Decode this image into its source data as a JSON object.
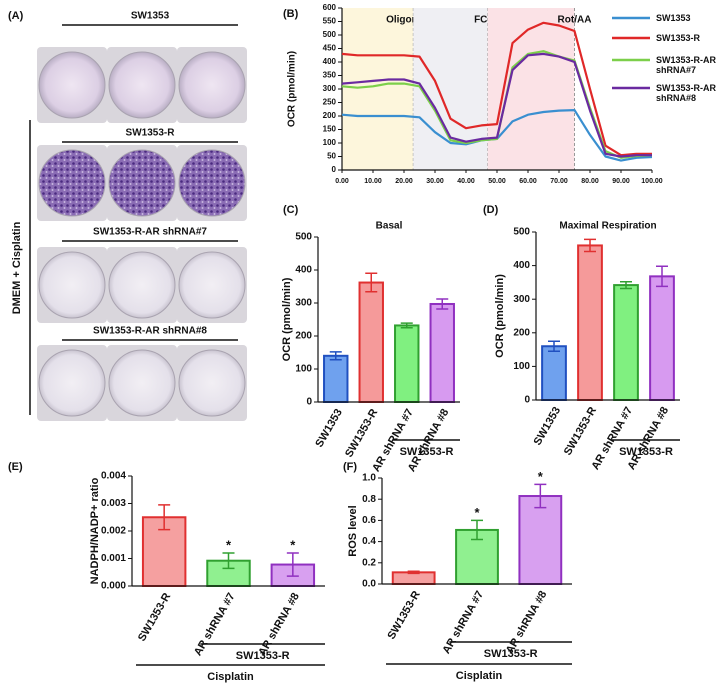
{
  "panel_a": {
    "label": "(A)",
    "side_label": "DMEM + Cisplatin",
    "rows": [
      {
        "title": "SW1353"
      },
      {
        "title": "SW1353-R"
      },
      {
        "title": "SW1353-R-AR shRNA#7"
      },
      {
        "title": "SW1353-R-AR shRNA#8"
      }
    ]
  },
  "chart_data": [
    {
      "type": "line",
      "panel_label": "(B)",
      "y_label": "OCR (pmol/min)",
      "x": [
        0,
        5,
        10,
        15,
        20,
        25,
        30,
        35,
        40,
        45,
        50,
        55,
        60,
        65,
        70,
        75,
        80,
        85,
        90,
        95,
        100
      ],
      "xlim": [
        0,
        100
      ],
      "xticks": [
        {
          "value": 0,
          "label": "0.00"
        },
        {
          "value": 10,
          "label": "10.00"
        },
        {
          "value": 20,
          "label": "20.00"
        },
        {
          "value": 30,
          "label": "30.00"
        },
        {
          "value": 40,
          "label": "40.00"
        },
        {
          "value": 50,
          "label": "50.00"
        },
        {
          "value": 60,
          "label": "60.00"
        },
        {
          "value": 70,
          "label": "70.00"
        },
        {
          "value": 80,
          "label": "80.00"
        },
        {
          "value": 90,
          "label": "90.00"
        },
        {
          "value": 100,
          "label": "100.00"
        }
      ],
      "ylim": [
        0,
        600
      ],
      "yticks": [
        0,
        50,
        100,
        150,
        200,
        250,
        300,
        350,
        400,
        450,
        500,
        550,
        600
      ],
      "injections": [
        {
          "label": "Oligomycin",
          "x": 23,
          "color": "#fdf6dc"
        },
        {
          "label": "FCCP",
          "x": 47,
          "color": "#efeff3"
        },
        {
          "label": "Rot/AA",
          "x": 75,
          "color": "#fbe2e6"
        }
      ],
      "legend": "upper right",
      "series": [
        {
          "name": "SW1353",
          "color": "#3a8fd0",
          "values": [
            205,
            200,
            200,
            200,
            200,
            195,
            140,
            100,
            95,
            110,
            115,
            180,
            205,
            215,
            220,
            222,
            130,
            50,
            35,
            45,
            48
          ]
        },
        {
          "name": "SW1353-R",
          "color": "#e02828",
          "values": [
            430,
            425,
            425,
            425,
            425,
            420,
            330,
            190,
            155,
            165,
            170,
            470,
            520,
            545,
            535,
            515,
            300,
            90,
            55,
            60,
            60
          ]
        },
        {
          "name": "SW1353-R-AR shRNA#7",
          "color": "#7ccf4a",
          "values": [
            310,
            305,
            310,
            320,
            320,
            310,
            220,
            110,
            100,
            110,
            115,
            380,
            430,
            440,
            420,
            405,
            230,
            70,
            45,
            52,
            55
          ]
        },
        {
          "name": "SW1353-R-AR shRNA#8",
          "color": "#6a2aa0",
          "values": [
            320,
            325,
            330,
            335,
            335,
            320,
            230,
            120,
            105,
            115,
            120,
            370,
            425,
            430,
            420,
            400,
            220,
            60,
            50,
            55,
            55
          ]
        }
      ]
    },
    {
      "type": "bar",
      "panel_label": "(C)",
      "title": "Basal",
      "y_label": "OCR (pmol/min)",
      "categories": [
        "SW1353",
        "SW1353-R",
        "AR shRNA #7",
        "AR shRNA #8"
      ],
      "values": [
        140,
        362,
        232,
        297
      ],
      "errors": [
        12,
        28,
        7,
        15
      ],
      "colors": [
        "#6fa1ee",
        "#f59a9a",
        "#80f080",
        "#d79af0"
      ],
      "edge_colors": [
        "#2050c0",
        "#e03030",
        "#30a030",
        "#9030c0"
      ],
      "ylim": [
        0,
        500
      ],
      "yticks": [
        0,
        100,
        200,
        300,
        400,
        500
      ],
      "groups": [
        {
          "label": "SW1353-R",
          "first": 2,
          "last": 3
        }
      ]
    },
    {
      "type": "bar",
      "panel_label": "(D)",
      "title": "Maximal Respiration",
      "y_label": "OCR (pmol/min)",
      "categories": [
        "SW1353",
        "SW1353-R",
        "AR shRNA #7",
        "AR shRNA #8"
      ],
      "values": [
        160,
        460,
        342,
        368
      ],
      "errors": [
        15,
        18,
        10,
        30
      ],
      "colors": [
        "#6fa1ee",
        "#f59a9a",
        "#80f080",
        "#d79af0"
      ],
      "edge_colors": [
        "#2050c0",
        "#e03030",
        "#30a030",
        "#9030c0"
      ],
      "ylim": [
        0,
        500
      ],
      "yticks": [
        0,
        100,
        200,
        300,
        400,
        500
      ],
      "groups": [
        {
          "label": "SW1353-R",
          "first": 2,
          "last": 3
        }
      ]
    },
    {
      "type": "bar",
      "panel_label": "(E)",
      "y_label": "NADPH/NADP+ ratio",
      "categories": [
        "SW1353-R",
        "AR shRNA #7",
        "AR shRNA #8"
      ],
      "values": [
        0.0025,
        0.00092,
        0.00078
      ],
      "errors": [
        0.00045,
        0.00028,
        0.00042
      ],
      "colors": [
        "#f5a0a0",
        "#90f090",
        "#d8a0f0"
      ],
      "edge_colors": [
        "#e03030",
        "#30a030",
        "#9030c0"
      ],
      "ylim": [
        0,
        0.004
      ],
      "yticks": [
        {
          "value": 0,
          "label": "0.000"
        },
        {
          "value": 0.001,
          "label": "0.001"
        },
        {
          "value": 0.002,
          "label": "0.002"
        },
        {
          "value": 0.003,
          "label": "0.003"
        },
        {
          "value": 0.004,
          "label": "0.004"
        }
      ],
      "stars": [
        {
          "index": 1,
          "label": "*"
        },
        {
          "index": 2,
          "label": "*"
        }
      ],
      "groups": [
        {
          "label": "SW1353-R",
          "first": 1,
          "last": 2
        },
        {
          "label": "Cisplatin",
          "first": 0,
          "last": 2
        }
      ]
    },
    {
      "type": "bar",
      "panel_label": "(F)",
      "y_label": "ROS level",
      "categories": [
        "SW1353-R",
        "AR shRNA #7",
        "AR shRNA #8"
      ],
      "values": [
        0.11,
        0.51,
        0.83
      ],
      "errors": [
        0.01,
        0.09,
        0.11
      ],
      "colors": [
        "#f5a0a0",
        "#90f090",
        "#d8a0f0"
      ],
      "edge_colors": [
        "#e03030",
        "#30a030",
        "#9030c0"
      ],
      "ylim": [
        0,
        1.0
      ],
      "yticks": [
        {
          "value": 0,
          "label": "0.0"
        },
        0.2,
        0.4,
        0.6,
        0.8,
        {
          "value": 1.0,
          "label": "1.0"
        }
      ],
      "stars": [
        {
          "index": 1,
          "label": "*"
        },
        {
          "index": 2,
          "label": "*"
        }
      ],
      "groups": [
        {
          "label": "SW1353-R",
          "first": 1,
          "last": 2
        },
        {
          "label": "Cisplatin",
          "first": 0,
          "last": 2
        }
      ]
    }
  ]
}
